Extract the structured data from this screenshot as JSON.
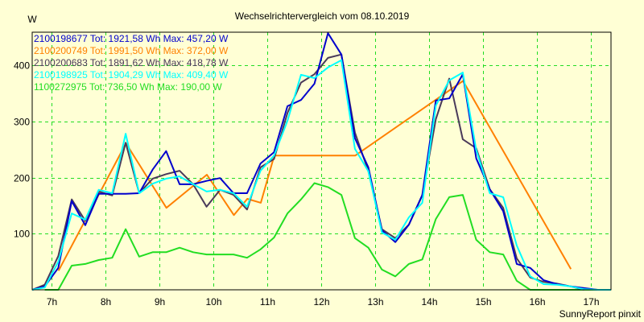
{
  "chart_data": {
    "type": "line",
    "title": "Wechselrichtervergleich vom 08.10.2019",
    "xlabel": "",
    "ylabel": "W",
    "footer": "SunnyReport pinxit",
    "xlim": [
      6.64,
      17.37
    ],
    "ylim": [
      0,
      457
    ],
    "x_ticks": [
      7,
      8,
      9,
      10,
      11,
      12,
      13,
      14,
      15,
      16,
      17
    ],
    "x_tick_labels": [
      "7h",
      "8h",
      "9h",
      "10h",
      "11h",
      "12h",
      "13h",
      "14h",
      "15h",
      "16h",
      "17h"
    ],
    "y_ticks": [
      100,
      200,
      300,
      400
    ],
    "y_tick_labels": [
      "100",
      "200",
      "300",
      "400"
    ],
    "grid": true,
    "legend_position": "top-left",
    "x_start": 6.625,
    "x_step": 0.25,
    "series": [
      {
        "name": "2100198677",
        "legend": "2100198677 Tot: 1921,58 Wh Max: 457,20 W",
        "color": "#0000CC",
        "start_index": 0,
        "values": [
          0,
          6,
          39,
          158,
          115,
          171,
          171,
          171,
          172,
          214,
          247,
          188,
          188,
          194,
          199,
          172,
          172,
          225,
          245,
          327,
          338,
          367,
          457,
          419,
          270,
          218,
          106,
          85,
          116,
          169,
          337,
          341,
          384,
          234,
          179,
          140,
          46,
          39,
          17,
          10,
          6,
          3,
          0
        ]
      },
      {
        "name": "2100200749",
        "legend": "2100200749 Tot: 1991,50 Wh Max: 372,00 W",
        "color": "#FF8000",
        "points": [
          [
            7.13,
            34
          ],
          [
            8.38,
            261
          ],
          [
            9.13,
            146
          ],
          [
            9.88,
            205
          ],
          [
            10.38,
            133
          ],
          [
            10.63,
            162
          ],
          [
            10.88,
            155
          ],
          [
            11.13,
            239
          ],
          [
            12.63,
            239
          ],
          [
            14.63,
            372
          ],
          [
            16.63,
            37
          ]
        ]
      },
      {
        "name": "2100200683",
        "legend": "2100200683 Tot: 1891,62 Wh Max: 418,78 W",
        "color": "#4A3A5A",
        "start_index": 0,
        "values": [
          0,
          9,
          60,
          161,
          123,
          175,
          168,
          262,
          172,
          198,
          206,
          212,
          188,
          148,
          178,
          169,
          143,
          218,
          233,
          315,
          369,
          384,
          413,
          419,
          280,
          211,
          108,
          92,
          116,
          168,
          304,
          376,
          268,
          252,
          179,
          146,
          56,
          22,
          14,
          11,
          6,
          0
        ]
      },
      {
        "name": "2100198925",
        "legend": "2100198925 Tot: 1904,29 Wh Max: 409,40 W",
        "color": "#00FFFF",
        "start_index": 0,
        "values": [
          0,
          4,
          50,
          136,
          125,
          178,
          172,
          278,
          172,
          189,
          198,
          202,
          188,
          175,
          178,
          172,
          148,
          212,
          239,
          301,
          383,
          377,
          396,
          409,
          251,
          211,
          102,
          89,
          129,
          155,
          328,
          373,
          387,
          249,
          172,
          165,
          79,
          24,
          10,
          9,
          6,
          1,
          0,
          0,
          0
        ]
      },
      {
        "name": "1100272975",
        "legend": "1100272975 Tot: 736,50 Wh Max: 190,00 W",
        "color": "#22DD22",
        "start_index": 1,
        "values": [
          0,
          0,
          43,
          46,
          53,
          57,
          108,
          59,
          67,
          67,
          75,
          67,
          63,
          63,
          63,
          57,
          72,
          93,
          136,
          161,
          190,
          183,
          169,
          92,
          75,
          36,
          24,
          46,
          54,
          126,
          165,
          169,
          89,
          67,
          63,
          16,
          0,
          0,
          0,
          0,
          0,
          0
        ]
      }
    ]
  },
  "colors": {
    "background": "#FFFFD5",
    "grid": "#22DD22",
    "axis": "#000000",
    "text": "#000000"
  }
}
